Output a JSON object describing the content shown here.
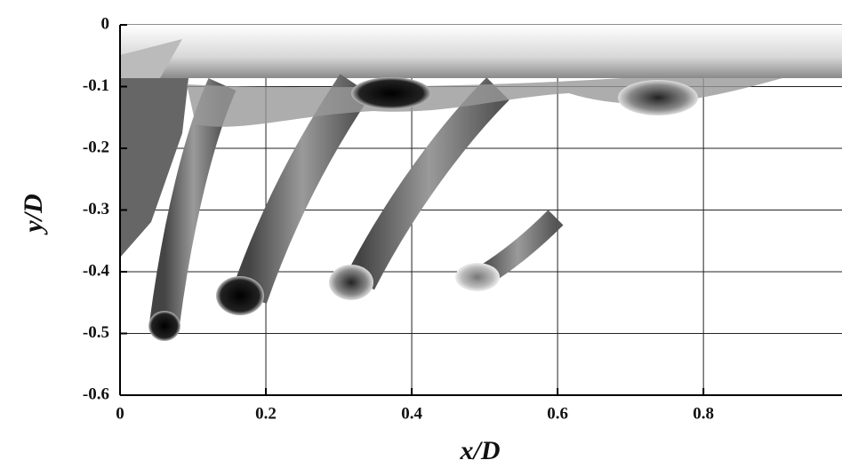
{
  "chart_data": {
    "type": "image",
    "xlabel": "x/D",
    "ylabel": "y/D",
    "xlim": [
      0,
      0.99
    ],
    "ylim": [
      -0.6,
      0
    ],
    "xticks": [
      0,
      0.2,
      0.4,
      0.6,
      0.8
    ],
    "yticks": [
      -0.6,
      -0.5,
      -0.4,
      -0.3,
      -0.2,
      -0.1,
      0
    ],
    "grid": true
  }
}
